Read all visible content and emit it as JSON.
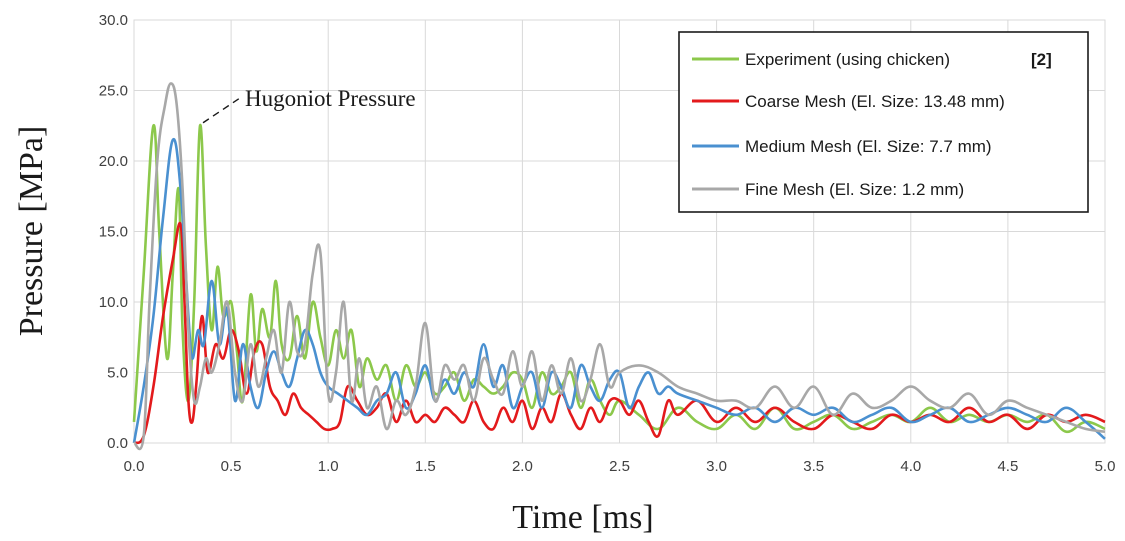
{
  "chart_data": {
    "type": "line",
    "xlabel": "Time [ms]",
    "ylabel": "Pressure [MPa]",
    "xlim": [
      0,
      5
    ],
    "ylim": [
      0,
      30
    ],
    "xticks": [
      "0.0",
      "0.5",
      "1.0",
      "1.5",
      "2.0",
      "2.5",
      "3.0",
      "3.5",
      "4.0",
      "4.5",
      "5.0"
    ],
    "yticks": [
      "0.0",
      "5.0",
      "10.0",
      "15.0",
      "20.0",
      "25.0",
      "30.0"
    ],
    "grid": true,
    "legend_position": "top-right",
    "annotation": "Hugoniot Pressure",
    "annotation_point": {
      "x": 0.34,
      "y": 22.5
    },
    "series": [
      {
        "name": "Experiment (using chicken)",
        "ref": "[2]",
        "color": "#8cc84b",
        "x": [
          0,
          0.05,
          0.1,
          0.13,
          0.17,
          0.2,
          0.23,
          0.25,
          0.28,
          0.31,
          0.34,
          0.37,
          0.4,
          0.43,
          0.46,
          0.5,
          0.53,
          0.56,
          0.6,
          0.63,
          0.66,
          0.7,
          0.73,
          0.76,
          0.8,
          0.84,
          0.88,
          0.92,
          0.96,
          1.0,
          1.04,
          1.08,
          1.12,
          1.16,
          1.2,
          1.25,
          1.3,
          1.35,
          1.4,
          1.45,
          1.5,
          1.55,
          1.6,
          1.65,
          1.7,
          1.75,
          1.8,
          1.85,
          1.9,
          1.95,
          2.0,
          2.05,
          2.1,
          2.15,
          2.2,
          2.25,
          2.3,
          2.35,
          2.4,
          2.45,
          2.5,
          2.6,
          2.7,
          2.8,
          2.9,
          3.0,
          3.1,
          3.2,
          3.3,
          3.4,
          3.5,
          3.6,
          3.7,
          3.8,
          3.9,
          4.0,
          4.1,
          4.2,
          4.3,
          4.4,
          4.5,
          4.6,
          4.7,
          4.8,
          4.9,
          5.0
        ],
        "values": [
          1.5,
          12.0,
          22.5,
          15.0,
          6.0,
          12.0,
          18.0,
          8.0,
          3.0,
          10.0,
          22.5,
          14.0,
          8.0,
          12.5,
          9.0,
          10.0,
          6.5,
          3.0,
          10.5,
          6.5,
          9.5,
          7.5,
          11.5,
          7.0,
          6.0,
          9.0,
          6.0,
          10.0,
          7.5,
          5.5,
          8.0,
          6.0,
          8.0,
          4.0,
          6.0,
          4.5,
          5.5,
          3.0,
          5.5,
          4.0,
          5.0,
          3.5,
          4.0,
          5.0,
          3.0,
          4.5,
          4.0,
          3.5,
          4.0,
          5.0,
          4.5,
          2.5,
          5.0,
          3.5,
          4.0,
          5.0,
          2.5,
          4.5,
          3.0,
          2.0,
          3.0,
          2.0,
          1.0,
          2.5,
          1.5,
          1.0,
          2.0,
          1.0,
          2.5,
          1.0,
          1.5,
          2.0,
          1.0,
          1.5,
          2.0,
          1.5,
          2.5,
          1.5,
          2.0,
          1.5,
          2.0,
          1.5,
          2.0,
          0.8,
          1.5,
          1.0
        ]
      },
      {
        "name": "Coarse Mesh (El. Size: 13.48 mm)",
        "color": "#e31a1c",
        "x": [
          0,
          0.05,
          0.1,
          0.15,
          0.2,
          0.24,
          0.26,
          0.28,
          0.3,
          0.32,
          0.35,
          0.38,
          0.42,
          0.46,
          0.5,
          0.54,
          0.58,
          0.62,
          0.66,
          0.7,
          0.74,
          0.78,
          0.82,
          0.86,
          0.9,
          0.94,
          0.98,
          1.02,
          1.06,
          1.1,
          1.15,
          1.2,
          1.25,
          1.3,
          1.35,
          1.4,
          1.45,
          1.5,
          1.55,
          1.6,
          1.65,
          1.7,
          1.75,
          1.8,
          1.85,
          1.9,
          1.95,
          2.0,
          2.05,
          2.1,
          2.15,
          2.2,
          2.25,
          2.3,
          2.35,
          2.4,
          2.45,
          2.5,
          2.55,
          2.6,
          2.65,
          2.7,
          2.75,
          2.8,
          2.9,
          3.0,
          3.1,
          3.2,
          3.3,
          3.4,
          3.5,
          3.6,
          3.7,
          3.8,
          3.9,
          4.0,
          4.1,
          4.2,
          4.3,
          4.4,
          4.5,
          4.6,
          4.7,
          4.8,
          4.9,
          5.0
        ],
        "values": [
          0,
          0.5,
          4.0,
          9.0,
          13.0,
          15.5,
          10.0,
          3.0,
          1.5,
          4.0,
          9.0,
          5.0,
          7.0,
          6.0,
          8.0,
          6.5,
          3.5,
          6.5,
          7.0,
          4.0,
          3.0,
          2.0,
          3.5,
          2.5,
          2.0,
          1.5,
          1.0,
          1.0,
          1.5,
          4.0,
          3.0,
          2.0,
          2.5,
          3.5,
          1.5,
          3.0,
          1.5,
          2.0,
          1.5,
          2.5,
          2.0,
          1.5,
          3.0,
          1.5,
          1.0,
          2.5,
          1.5,
          3.0,
          1.0,
          2.5,
          1.5,
          3.5,
          2.0,
          1.0,
          2.5,
          1.5,
          3.0,
          3.0,
          2.0,
          3.0,
          1.5,
          0.5,
          3.0,
          2.0,
          3.0,
          1.5,
          2.5,
          1.5,
          2.5,
          1.5,
          1.0,
          2.0,
          1.5,
          1.0,
          2.0,
          1.5,
          2.0,
          1.5,
          2.5,
          1.5,
          2.0,
          1.0,
          2.0,
          1.5,
          2.0,
          1.5
        ]
      },
      {
        "name": "Medium Mesh (El. Size: 7.7 mm)",
        "color": "#4a90d0",
        "x": [
          0,
          0.05,
          0.1,
          0.15,
          0.2,
          0.24,
          0.28,
          0.3,
          0.33,
          0.36,
          0.4,
          0.44,
          0.48,
          0.52,
          0.56,
          0.6,
          0.64,
          0.68,
          0.72,
          0.76,
          0.8,
          0.84,
          0.88,
          0.92,
          0.96,
          1.0,
          1.05,
          1.1,
          1.15,
          1.2,
          1.25,
          1.3,
          1.35,
          1.4,
          1.45,
          1.5,
          1.55,
          1.6,
          1.65,
          1.7,
          1.75,
          1.8,
          1.85,
          1.9,
          1.95,
          2.0,
          2.05,
          2.1,
          2.15,
          2.2,
          2.25,
          2.3,
          2.35,
          2.4,
          2.45,
          2.5,
          2.55,
          2.6,
          2.65,
          2.7,
          2.75,
          2.8,
          2.9,
          3.0,
          3.1,
          3.2,
          3.3,
          3.4,
          3.5,
          3.6,
          3.7,
          3.8,
          3.9,
          4.0,
          4.1,
          4.2,
          4.3,
          4.4,
          4.5,
          4.6,
          4.7,
          4.8,
          4.9,
          5.0
        ],
        "values": [
          0,
          4.0,
          9.0,
          16.0,
          21.5,
          18.0,
          9.0,
          6.0,
          8.0,
          7.0,
          11.5,
          7.0,
          9.5,
          3.0,
          7.0,
          4.0,
          2.5,
          5.0,
          6.5,
          5.0,
          4.0,
          6.0,
          8.0,
          7.0,
          5.0,
          4.0,
          3.5,
          3.0,
          2.5,
          2.0,
          3.0,
          3.5,
          5.0,
          2.5,
          3.5,
          5.5,
          3.0,
          4.5,
          3.5,
          5.0,
          4.0,
          7.0,
          4.0,
          5.5,
          2.5,
          4.0,
          5.0,
          2.5,
          5.0,
          4.0,
          2.5,
          5.5,
          4.0,
          3.0,
          4.5,
          5.0,
          2.5,
          4.0,
          5.0,
          3.5,
          4.0,
          3.5,
          3.0,
          2.5,
          2.0,
          2.5,
          1.5,
          2.5,
          2.0,
          2.5,
          1.5,
          2.0,
          2.5,
          1.5,
          2.0,
          2.5,
          1.5,
          2.0,
          2.5,
          2.0,
          1.5,
          2.5,
          1.5,
          0.3
        ]
      },
      {
        "name": "Fine Mesh (El. Size: 1.2 mm)",
        "color": "#a8a8a8",
        "x": [
          0,
          0.05,
          0.08,
          0.12,
          0.16,
          0.19,
          0.22,
          0.25,
          0.28,
          0.31,
          0.34,
          0.37,
          0.4,
          0.44,
          0.48,
          0.52,
          0.56,
          0.6,
          0.64,
          0.68,
          0.72,
          0.76,
          0.8,
          0.84,
          0.88,
          0.92,
          0.96,
          1.0,
          1.04,
          1.08,
          1.12,
          1.16,
          1.2,
          1.25,
          1.3,
          1.35,
          1.4,
          1.45,
          1.5,
          1.55,
          1.6,
          1.65,
          1.7,
          1.75,
          1.8,
          1.85,
          1.9,
          1.95,
          2.0,
          2.05,
          2.1,
          2.15,
          2.2,
          2.25,
          2.3,
          2.35,
          2.4,
          2.45,
          2.5,
          2.6,
          2.7,
          2.8,
          2.9,
          3.0,
          3.1,
          3.2,
          3.3,
          3.4,
          3.5,
          3.6,
          3.7,
          3.8,
          3.9,
          4.0,
          4.1,
          4.2,
          4.3,
          4.4,
          4.5,
          4.6,
          4.7,
          4.8,
          4.9,
          5.0
        ],
        "values": [
          0,
          0.5,
          10.0,
          20.0,
          24.0,
          25.5,
          24.0,
          18.0,
          8.0,
          3.0,
          4.0,
          6.0,
          5.0,
          7.0,
          10.0,
          5.0,
          3.0,
          7.0,
          4.0,
          6.0,
          8.0,
          5.0,
          10.0,
          6.5,
          7.0,
          12.0,
          13.5,
          3.5,
          5.0,
          10.0,
          3.0,
          6.0,
          2.5,
          4.0,
          1.0,
          3.0,
          2.0,
          4.0,
          8.5,
          3.0,
          5.5,
          4.5,
          5.5,
          3.0,
          6.0,
          4.5,
          3.5,
          6.5,
          4.0,
          6.5,
          3.0,
          5.5,
          3.5,
          6.0,
          3.0,
          4.5,
          7.0,
          4.0,
          5.0,
          5.5,
          5.0,
          4.0,
          3.5,
          3.0,
          3.0,
          2.5,
          4.0,
          2.5,
          4.0,
          2.0,
          3.5,
          2.5,
          3.0,
          4.0,
          3.0,
          2.5,
          3.5,
          2.0,
          3.0,
          2.5,
          2.0,
          1.5,
          1.0,
          0.8
        ]
      }
    ]
  }
}
